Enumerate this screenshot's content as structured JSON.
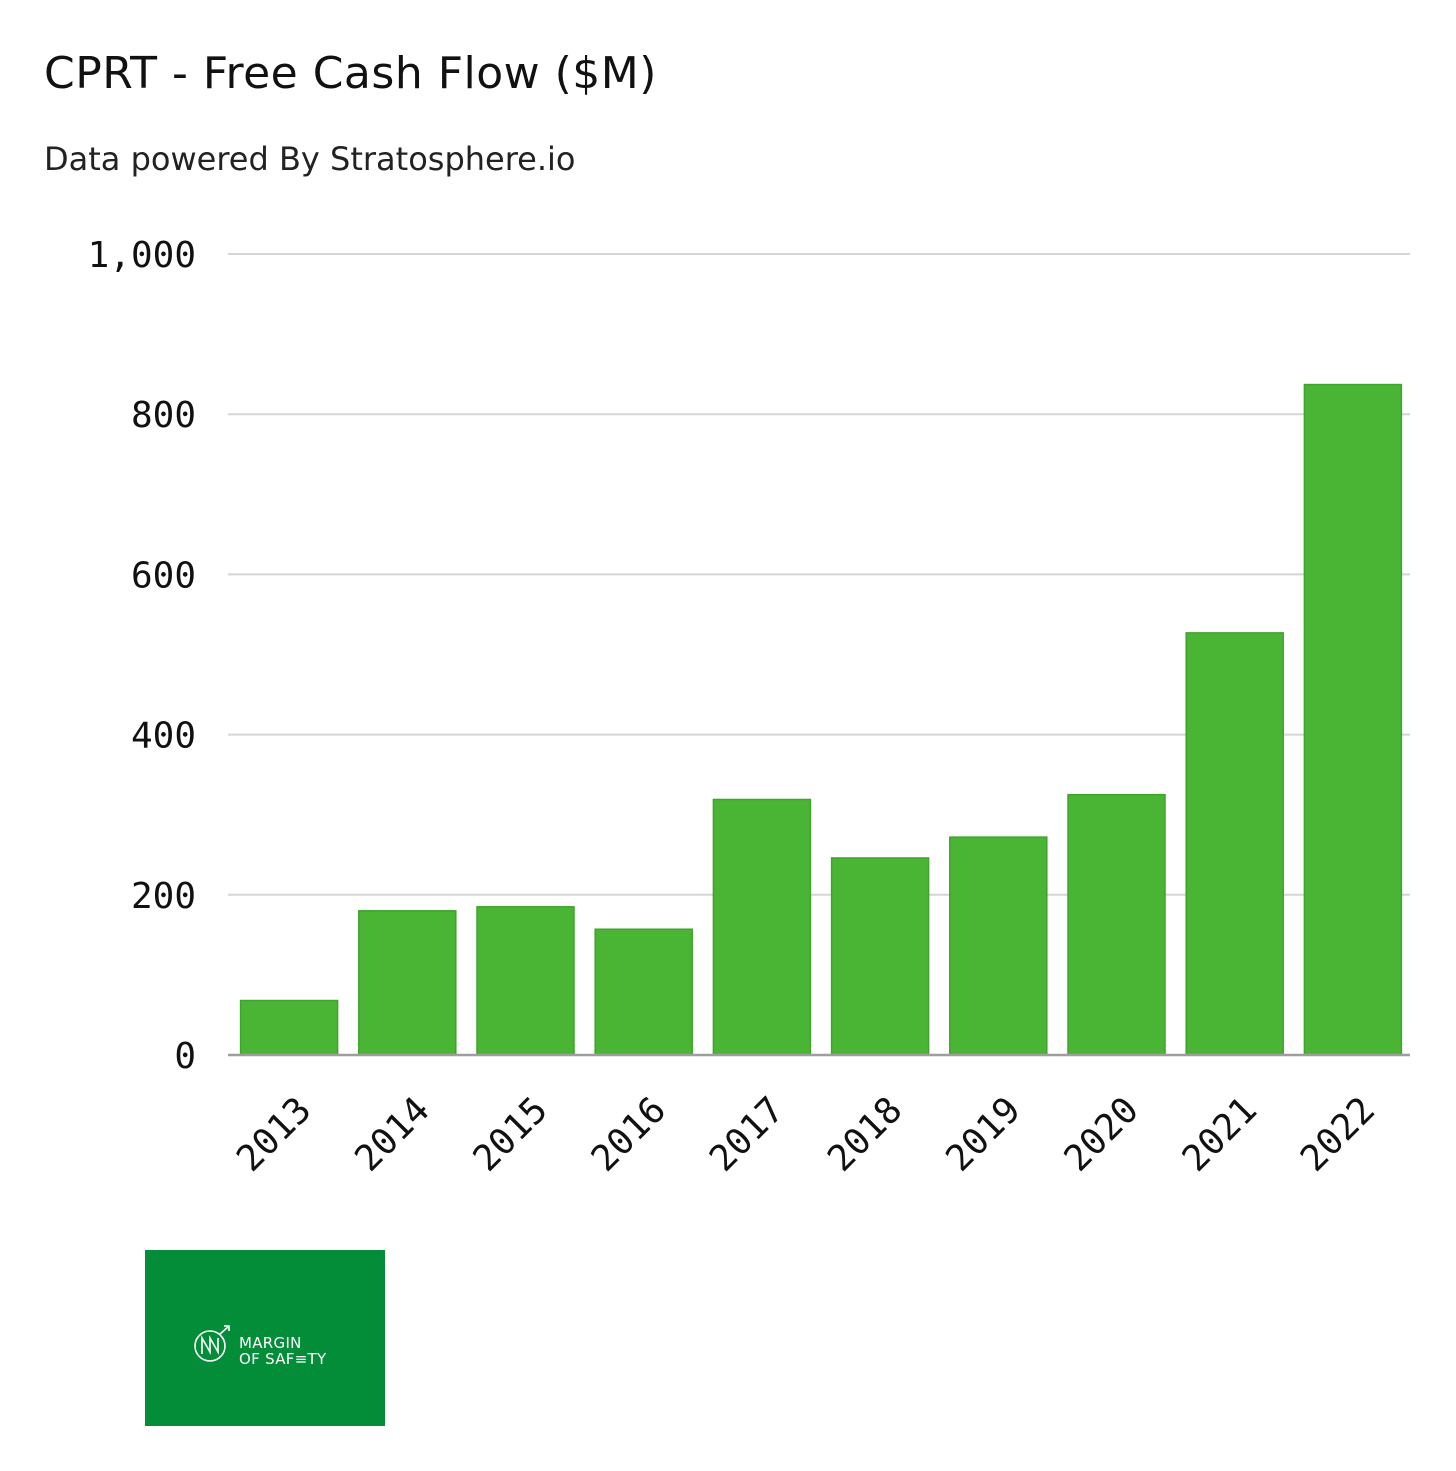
{
  "chart_data": {
    "type": "bar",
    "title": "CPRT - Free Cash Flow ($M)",
    "subtitle": "Data powered By Stratosphere.io",
    "categories": [
      "2013",
      "2014",
      "2015",
      "2016",
      "2017",
      "2018",
      "2019",
      "2020",
      "2021",
      "2022"
    ],
    "values": [
      68,
      180,
      185,
      157,
      319,
      246,
      272,
      325,
      527,
      837
    ],
    "ylim": [
      0,
      1000
    ],
    "yticks": [
      0,
      200,
      400,
      600,
      800,
      1000
    ],
    "ytick_labels": [
      "0",
      "200",
      "400",
      "600",
      "800",
      "1,000"
    ],
    "grid": true,
    "bar_color": "#4ab535",
    "xlabel": "",
    "ylabel": ""
  },
  "logo": {
    "line1": "MARGIN",
    "line2": "OF SAF≡TY",
    "background": "#038d38"
  }
}
